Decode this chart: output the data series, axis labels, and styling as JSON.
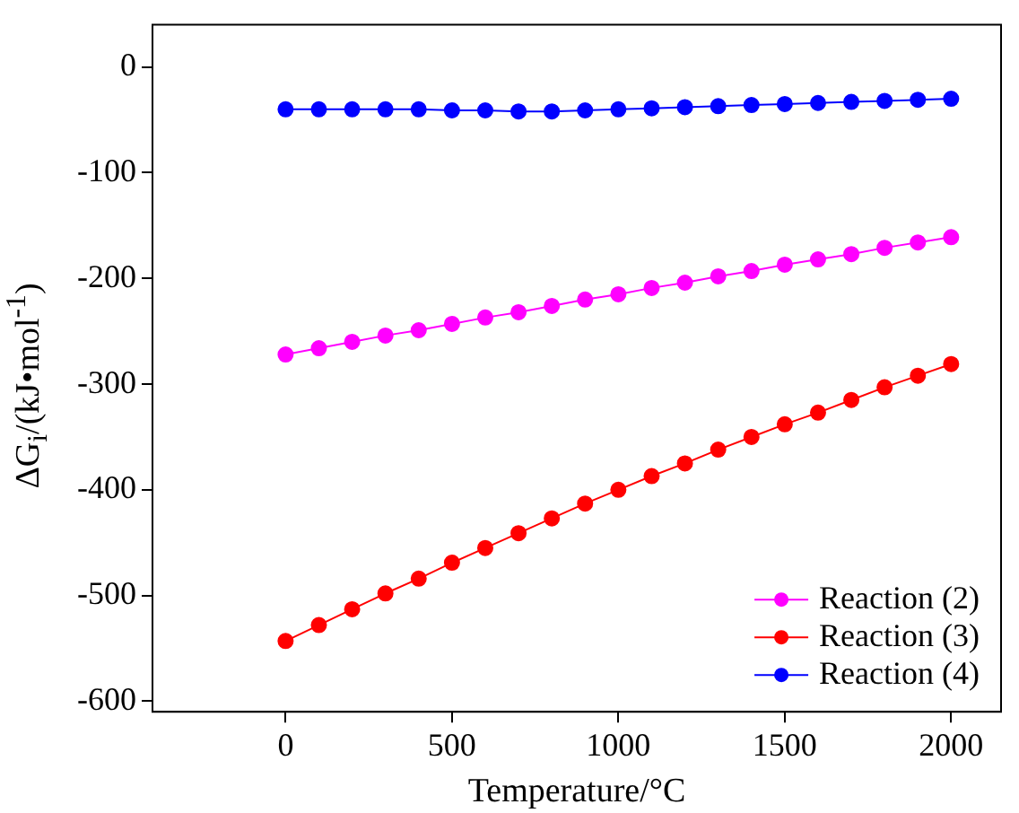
{
  "chart_data": {
    "type": "line",
    "xlabel": "Temperature/°C",
    "ylabel": "ΔG$_{i}$/(kJ•mol$^{-1}$)",
    "x": [
      0,
      100,
      200,
      300,
      400,
      500,
      600,
      700,
      800,
      900,
      1000,
      1100,
      1200,
      1300,
      1400,
      1500,
      1600,
      1700,
      1800,
      1900,
      2000
    ],
    "xlim": [
      -400,
      2150
    ],
    "xticks": [
      0,
      500,
      1000,
      1500,
      2000
    ],
    "ylim": [
      -610,
      40
    ],
    "yticks": [
      0,
      -100,
      -200,
      -300,
      -400,
      -500,
      -600
    ],
    "series": [
      {
        "name": "Reaction (2)",
        "color": "#ff00ff",
        "values": [
          -272,
          -266,
          -260,
          -254,
          -249,
          -243,
          -237,
          -232,
          -226,
          -220,
          -215,
          -209,
          -204,
          -198,
          -193,
          -187,
          -182,
          -177,
          -171,
          -166,
          -161
        ]
      },
      {
        "name": "Reaction (3)",
        "color": "#ff0000",
        "values": [
          -543,
          -528,
          -513,
          -498,
          -484,
          -469,
          -455,
          -441,
          -427,
          -413,
          -400,
          -387,
          -375,
          -362,
          -350,
          -338,
          -327,
          -315,
          -303,
          -292,
          -281
        ]
      },
      {
        "name": "Reaction (4)",
        "color": "#0000ff",
        "values": [
          -40,
          -40,
          -40,
          -40,
          -40,
          -41,
          -41,
          -42,
          -42,
          -41,
          -40,
          -39,
          -38,
          -37,
          -36,
          -35,
          -34,
          -33,
          -32,
          -31,
          -30
        ]
      }
    ],
    "marker": "circle",
    "line_style": "solid",
    "grid": false,
    "legend": "bottom right"
  }
}
